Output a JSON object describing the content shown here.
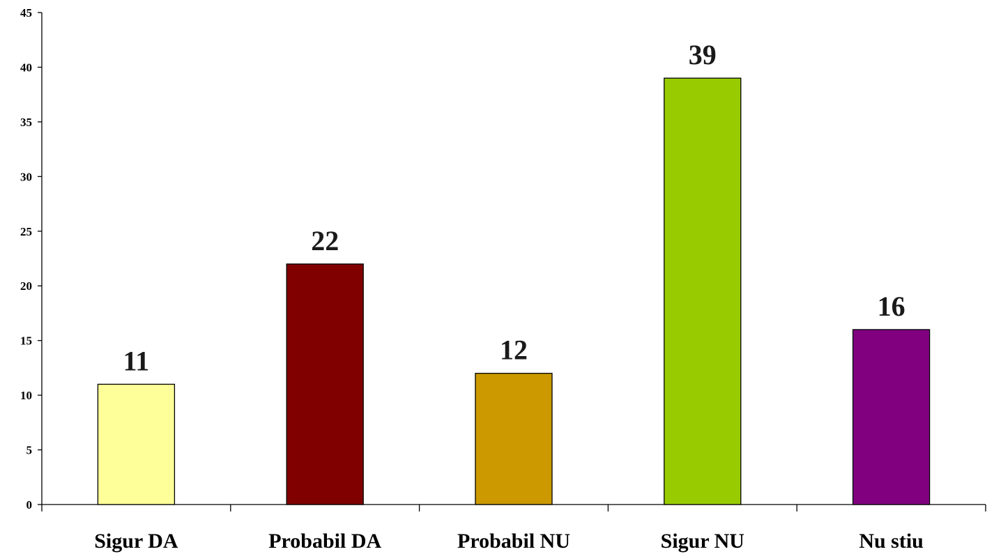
{
  "chart_data": {
    "type": "bar",
    "categories": [
      "Sigur DA",
      "Probabil DA",
      "Probabil NU",
      "Sigur NU",
      "Nu stiu"
    ],
    "values": [
      11,
      22,
      12,
      39,
      16
    ],
    "colors": [
      "#FFFF99",
      "#800000",
      "#CC9900",
      "#99CC00",
      "#800080"
    ],
    "data_labels": [
      "11",
      "22",
      "12",
      "39",
      "16"
    ],
    "title": "",
    "xlabel": "",
    "ylabel": "",
    "ylim": [
      0,
      45
    ],
    "yticks": [
      0,
      5,
      10,
      15,
      20,
      25,
      30,
      35,
      40,
      45
    ],
    "ytick_labels": [
      "0",
      "5",
      "10",
      "15",
      "20",
      "25",
      "30",
      "35",
      "40",
      "45"
    ],
    "grid": false,
    "legend": "none"
  }
}
